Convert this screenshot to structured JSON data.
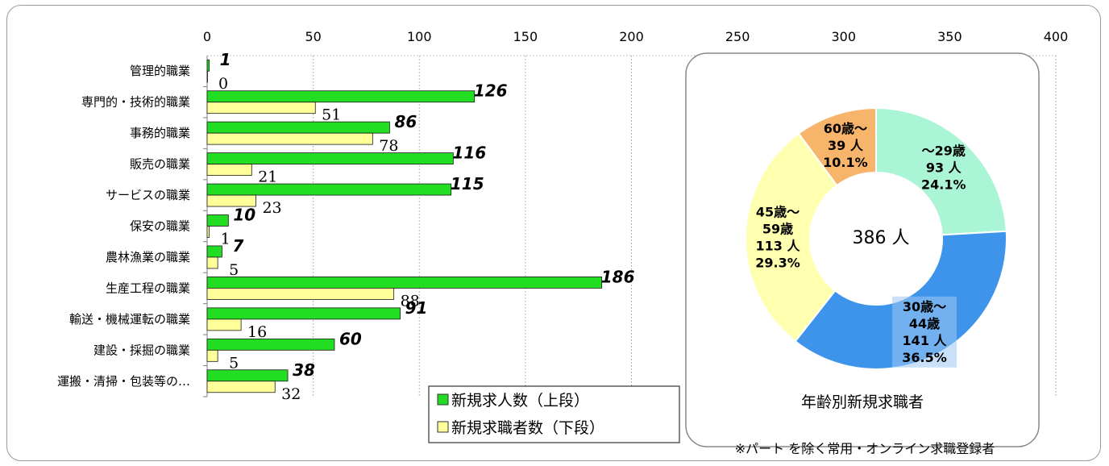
{
  "chart_data": [
    {
      "type": "bar",
      "orientation": "horizontal",
      "categories": [
        "管理的職業",
        "専門的・技術的職業",
        "事務的職業",
        "販売の職業",
        "サービスの職業",
        "保安の職業",
        "農林漁業の職業",
        "生産工程の職業",
        "輸送・機械運転の職業",
        "建設・採掘の職業",
        "運搬・清掃・包装等の…"
      ],
      "series": [
        {
          "name": "新規求人数（上段）",
          "color": "#22dd22",
          "values": [
            1,
            126,
            86,
            116,
            115,
            10,
            7,
            186,
            91,
            60,
            38
          ]
        },
        {
          "name": "新規求職者数（下段）",
          "color": "#ffff99",
          "values": [
            0,
            51,
            78,
            21,
            23,
            1,
            5,
            88,
            16,
            5,
            32
          ]
        }
      ],
      "xlim": [
        0,
        400
      ],
      "xticks": [
        0,
        50,
        100,
        150,
        200,
        250,
        300,
        350,
        400
      ],
      "grid": true,
      "legend": "bottom-center"
    },
    {
      "type": "pie",
      "donut": true,
      "title": "年齢別新規求職者",
      "center_label": "386 人",
      "slices": [
        {
          "label_lines": [
            "～29歳",
            "93 人",
            "24.1%"
          ],
          "value": 93,
          "color": "#aaf5d5"
        },
        {
          "label_lines": [
            "30歳～",
            "44歳",
            "141 人",
            "36.5%"
          ],
          "value": 141,
          "color": "#3e94ea"
        },
        {
          "label_lines": [
            "45歳～",
            "59歳",
            "113 人",
            "29.3%"
          ],
          "value": 113,
          "color": "#ffffb0"
        },
        {
          "label_lines": [
            "60歳～",
            "39 人",
            "10.1%"
          ],
          "value": 39,
          "color": "#f7b56b"
        }
      ]
    }
  ],
  "note": "※パート を除く常用・オンライン求職登録者"
}
